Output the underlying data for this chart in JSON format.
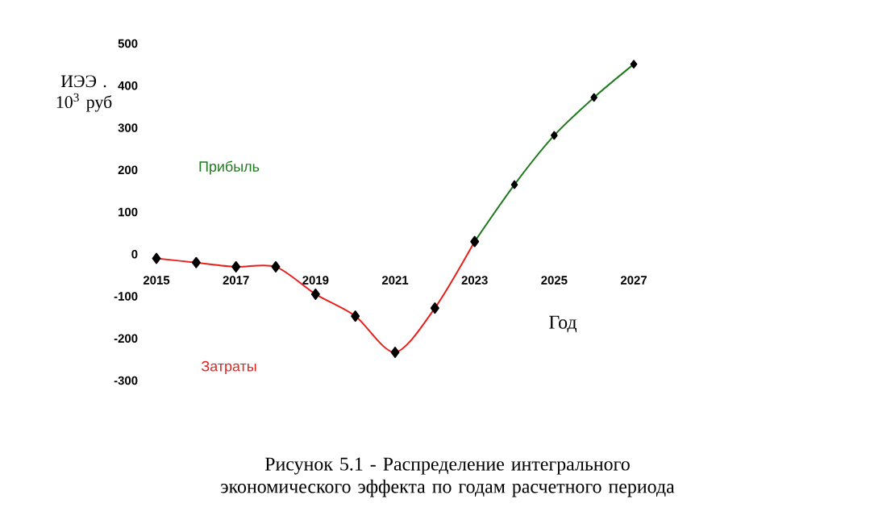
{
  "chart_data": {
    "type": "line",
    "xlabel": "Год",
    "ylabel": "ИЭЭ . 10$^{3}$ руб",
    "xlim": [
      2015,
      2027
    ],
    "ylim": [
      -300,
      500
    ],
    "xticks": [
      2015,
      2017,
      2019,
      2021,
      2023,
      2025,
      2027
    ],
    "yticks": [
      -300,
      -200,
      -100,
      0,
      100,
      200,
      300,
      400,
      500
    ],
    "marker": "diamond",
    "grid": false,
    "legend": false,
    "series": [
      {
        "name": "Затраты",
        "color": "#e8201c",
        "x": [
          2015,
          2016,
          2017,
          2018,
          2019,
          2020,
          2021,
          2022,
          2023
        ],
        "values": [
          -10,
          -20,
          -30,
          -30,
          -95,
          -147,
          -233,
          -128,
          30
        ]
      },
      {
        "name": "Прибыль",
        "color": "#1f7a1f",
        "x": [
          2023,
          2024,
          2025,
          2026,
          2027
        ],
        "values": [
          30,
          165,
          282,
          372,
          451
        ]
      }
    ],
    "annotations": [
      "Рисунок 5.1 - Распределение интегрального экономического эффекта по годам расчетного периода"
    ]
  }
}
